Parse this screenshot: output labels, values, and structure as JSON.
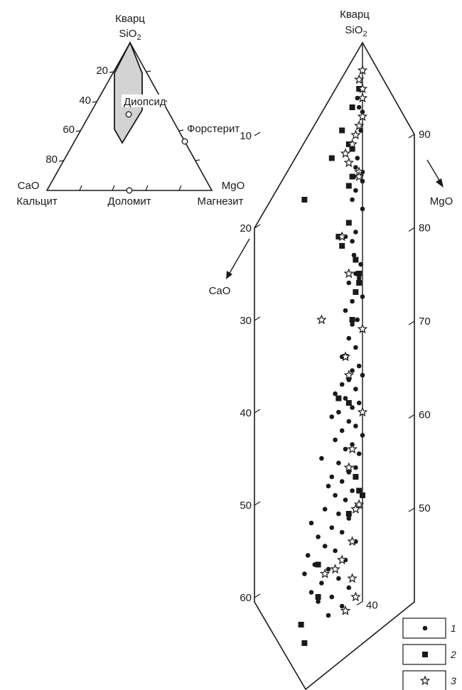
{
  "colors": {
    "ink": "#1a1a1a",
    "field_fill": "#d3d3d3",
    "background": "#ffffff"
  },
  "inset": {
    "apex_labels": {
      "top_name": "Кварц",
      "top_formula": "SiO",
      "top_formula_sub": "2",
      "left_formula": "CaO",
      "left_name": "Кальцит",
      "right_formula": "MgO",
      "right_name": "Магнезит"
    },
    "minerals": {
      "diopside": "Диопсид",
      "forsterite": "Форстерит",
      "dolomite": "Доломит"
    },
    "left_ticks": [
      "20",
      "40",
      "60",
      "80"
    ]
  },
  "main": {
    "apex_name": "Кварц",
    "apex_formula": "SiO",
    "apex_formula_sub": "2",
    "cao_label": "CaO",
    "mgo_label": "MgO",
    "cao_ticks": [
      "10",
      "20",
      "30",
      "40",
      "50",
      "60"
    ],
    "mgo_ticks": [
      "90",
      "80",
      "70",
      "60",
      "50",
      "40"
    ]
  },
  "legend": [
    {
      "symbol": "circle-icon",
      "label": "1"
    },
    {
      "symbol": "square-icon",
      "label": "2"
    },
    {
      "symbol": "star-icon",
      "label": "3"
    }
  ],
  "chart_data": {
    "type": "scatter",
    "diagram": "ternary SiO2–CaO–MgO (enlarged near SiO2 apex)",
    "cao_axis_ticks": [
      10,
      20,
      30,
      40,
      50,
      60
    ],
    "mgo_axis_ticks": [
      90,
      80,
      70,
      60,
      50,
      40
    ],
    "series": [
      {
        "legend_label": "1",
        "marker": "filled circle",
        "points_cao_mgo": [
          [
            6,
            1.5
          ],
          [
            7,
            1
          ],
          [
            7.5,
            0
          ],
          [
            9.5,
            0.5
          ],
          [
            10,
            2
          ],
          [
            12.5,
            1.5
          ],
          [
            13.5,
            2
          ],
          [
            14,
            0
          ],
          [
            14.5,
            2.5
          ],
          [
            15,
            0
          ],
          [
            16,
            2
          ],
          [
            17,
            3
          ],
          [
            18,
            0
          ],
          [
            19.5,
            4
          ],
          [
            20.5,
            2
          ],
          [
            21,
            5
          ],
          [
            21.5,
            3
          ],
          [
            23,
            2.5
          ],
          [
            24,
            0.5
          ],
          [
            25,
            2
          ],
          [
            25.5,
            1
          ],
          [
            26,
            4
          ],
          [
            27,
            2
          ],
          [
            27.5,
            0
          ],
          [
            28,
            3
          ],
          [
            29,
            5
          ],
          [
            30,
            1.5
          ],
          [
            30.5,
            3
          ],
          [
            31,
            0
          ],
          [
            32,
            4
          ],
          [
            33,
            2
          ],
          [
            34,
            6
          ],
          [
            35,
            1
          ],
          [
            35.5,
            3
          ],
          [
            36,
            0
          ],
          [
            36.5,
            4
          ],
          [
            37,
            6
          ],
          [
            37.5,
            2
          ],
          [
            38,
            8
          ],
          [
            38.5,
            5
          ],
          [
            39,
            1
          ],
          [
            39.5,
            3
          ],
          [
            40,
            7
          ],
          [
            40.5,
            9
          ],
          [
            41,
            4
          ],
          [
            41.5,
            2
          ],
          [
            42,
            6
          ],
          [
            42.5,
            0
          ],
          [
            43,
            8
          ],
          [
            43.5,
            3
          ],
          [
            44,
            5
          ],
          [
            44.5,
            1
          ],
          [
            45,
            12
          ],
          [
            45.5,
            7
          ],
          [
            46,
            2
          ],
          [
            46.5,
            4
          ],
          [
            47,
            9
          ],
          [
            47.5,
            6
          ],
          [
            48,
            10
          ],
          [
            48.5,
            3
          ],
          [
            49,
            8
          ],
          [
            49.5,
            5
          ],
          [
            50,
            1
          ],
          [
            50.5,
            11
          ],
          [
            51,
            7
          ],
          [
            51.5,
            4
          ],
          [
            52,
            15
          ],
          [
            52.5,
            9
          ],
          [
            53,
            6
          ],
          [
            53.5,
            13
          ],
          [
            54,
            2
          ],
          [
            54.5,
            11
          ],
          [
            55,
            8
          ],
          [
            55.5,
            16
          ],
          [
            56,
            5
          ],
          [
            56.5,
            14
          ],
          [
            57,
            10
          ],
          [
            57.5,
            17
          ],
          [
            58,
            7
          ],
          [
            58.5,
            12
          ],
          [
            59,
            4
          ],
          [
            59.5,
            15
          ],
          [
            60,
            9
          ],
          [
            60.5,
            13
          ],
          [
            61,
            6
          ],
          [
            62,
            10
          ]
        ]
      },
      {
        "legend_label": "2",
        "marker": "filled square",
        "points_cao_mgo": [
          [
            5,
            1
          ],
          [
            7,
            3
          ],
          [
            9.5,
            6
          ],
          [
            11,
            4
          ],
          [
            11.5,
            3
          ],
          [
            12.5,
            9
          ],
          [
            14.5,
            3
          ],
          [
            15.5,
            4
          ],
          [
            17,
            17
          ],
          [
            19.5,
            4
          ],
          [
            21,
            7
          ],
          [
            22,
            6
          ],
          [
            23.5,
            2
          ],
          [
            25,
            1
          ],
          [
            26,
            1
          ],
          [
            27,
            2
          ],
          [
            30,
            3
          ],
          [
            34,
            5
          ],
          [
            38.5,
            7
          ],
          [
            39,
            4
          ],
          [
            47,
            2
          ],
          [
            48.5,
            1
          ],
          [
            49,
            0
          ],
          [
            51,
            4
          ],
          [
            56.5,
            13
          ],
          [
            60,
            13
          ],
          [
            63,
            18
          ],
          [
            65,
            17
          ]
        ]
      },
      {
        "legend_label": "3",
        "marker": "open star",
        "points_cao_mgo": [
          [
            3,
            0
          ],
          [
            4,
            1
          ],
          [
            5,
            0
          ],
          [
            6,
            0
          ],
          [
            8,
            0
          ],
          [
            9,
            1
          ],
          [
            10,
            2
          ],
          [
            11,
            3
          ],
          [
            12,
            5
          ],
          [
            13,
            4
          ],
          [
            14,
            1
          ],
          [
            14.5,
            1
          ],
          [
            21,
            6
          ],
          [
            25,
            4
          ],
          [
            30,
            12
          ],
          [
            31,
            0
          ],
          [
            34,
            5
          ],
          [
            36,
            4
          ],
          [
            40,
            0
          ],
          [
            44,
            3
          ],
          [
            46,
            4
          ],
          [
            50,
            1
          ],
          [
            50.5,
            2
          ],
          [
            54,
            3
          ],
          [
            56,
            6
          ],
          [
            57,
            8
          ],
          [
            57.5,
            11
          ],
          [
            58,
            3
          ],
          [
            60,
            2
          ],
          [
            61.5,
            5
          ]
        ]
      }
    ]
  }
}
